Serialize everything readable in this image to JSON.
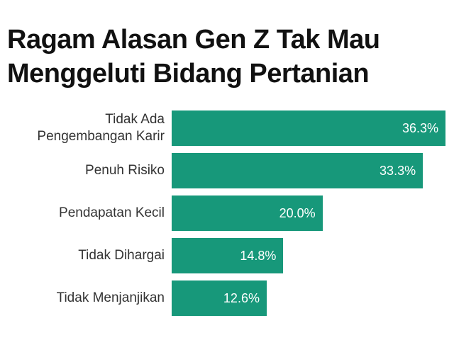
{
  "chart_data": {
    "type": "bar",
    "orientation": "horizontal",
    "title": "Ragam Alasan Gen Z Tak Mau Menggeluti Bidang Pertanian",
    "categories": [
      "Tidak Ada Pengembangan Karir",
      "Penuh Risiko",
      "Pendapatan Kecil",
      "Tidak Dihargai",
      "Tidak Menjanjikan"
    ],
    "values": [
      36.3,
      33.3,
      20.0,
      14.8,
      12.6
    ],
    "value_labels": [
      "36.3%",
      "33.3%",
      "20.0%",
      "14.8%",
      "12.6%"
    ],
    "color": "#17987a"
  }
}
